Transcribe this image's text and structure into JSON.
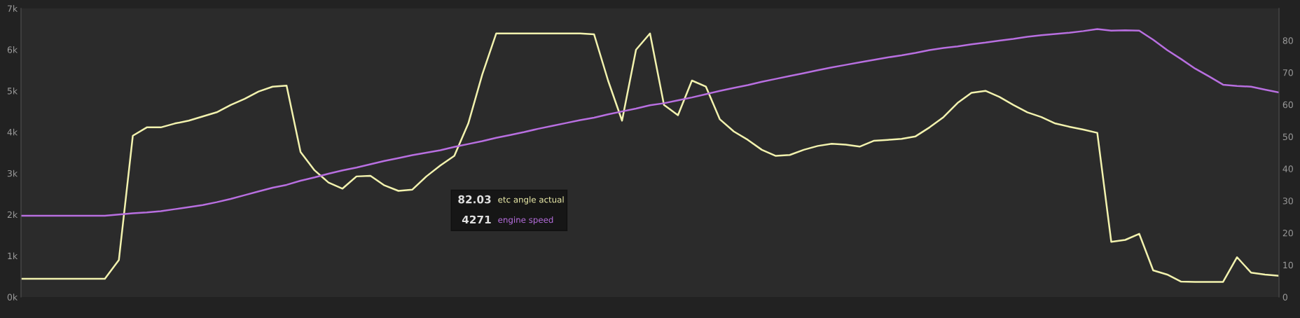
{
  "chart_data": {
    "type": "line",
    "categories": [
      null,
      null,
      null,
      null,
      null,
      null,
      null,
      null,
      null,
      null,
      null,
      null,
      null,
      null,
      null,
      null,
      null,
      null,
      null,
      null,
      null,
      null,
      null,
      null,
      null,
      null,
      null,
      null,
      null,
      null,
      null,
      null,
      null,
      null,
      null,
      null,
      null,
      null,
      null,
      null,
      null,
      null,
      null,
      null,
      null,
      null,
      null,
      null,
      null,
      null,
      null,
      null,
      null,
      null,
      null,
      null,
      null,
      null,
      null,
      null,
      null,
      null,
      null,
      null,
      null,
      null,
      null,
      null,
      null,
      null,
      null,
      null,
      null,
      null,
      null,
      null,
      null,
      null,
      null,
      null,
      null,
      null,
      null,
      null,
      null,
      null,
      null,
      null,
      null,
      null,
      null
    ],
    "series": [
      {
        "name": "etc angle actual",
        "color": "#f2f2ae",
        "axis": "y2",
        "values": [
          5.7,
          5.7,
          5.7,
          5.7,
          5.7,
          5.7,
          5.7,
          11.5,
          50.3,
          52.9,
          52.9,
          54.1,
          55.0,
          56.3,
          57.6,
          59.9,
          61.8,
          64.1,
          65.6,
          65.9,
          45.2,
          39.5,
          35.7,
          33.8,
          37.6,
          37.8,
          34.8,
          33.1,
          33.5,
          37.6,
          41.0,
          44.0,
          54.1,
          69.4,
          82.2,
          82.2,
          82.2,
          82.2,
          82.2,
          82.2,
          82.2,
          81.9,
          67.5,
          55.0,
          77.1,
          82.2,
          59.9,
          56.7,
          67.5,
          65.6,
          55.4,
          51.6,
          49.0,
          45.9,
          44.0,
          44.3,
          45.9,
          47.1,
          47.8,
          47.5,
          46.9,
          48.7,
          49.0,
          49.3,
          50.1,
          52.9,
          56.1,
          60.5,
          63.7,
          64.3,
          62.4,
          59.9,
          57.6,
          56.1,
          54.1,
          53.1,
          52.2,
          51.2,
          17.2,
          17.8,
          19.7,
          8.3,
          7.0,
          4.8,
          4.7,
          4.7,
          4.7,
          12.4,
          7.6,
          7.0,
          6.6
        ]
      },
      {
        "name": "engine speed",
        "color": "#b86fe0",
        "values": [
          1.97,
          1.97,
          1.97,
          1.97,
          1.97,
          1.97,
          1.97,
          2.0,
          2.03,
          2.05,
          2.08,
          2.13,
          2.18,
          2.23,
          2.3,
          2.38,
          2.47,
          2.56,
          2.65,
          2.72,
          2.82,
          2.9,
          2.99,
          3.07,
          3.14,
          3.22,
          3.3,
          3.37,
          3.44,
          3.5,
          3.56,
          3.64,
          3.71,
          3.78,
          3.86,
          3.93,
          4.0,
          4.08,
          4.15,
          4.22,
          4.29,
          4.35,
          4.43,
          4.5,
          4.57,
          4.65,
          4.7,
          4.77,
          4.84,
          4.92,
          5.0,
          5.07,
          5.14,
          5.22,
          5.29,
          5.36,
          5.43,
          5.5,
          5.57,
          5.63,
          5.69,
          5.75,
          5.81,
          5.86,
          5.92,
          5.99,
          6.04,
          6.08,
          6.13,
          6.17,
          6.22,
          6.26,
          6.31,
          6.35,
          6.38,
          6.41,
          6.45,
          6.5,
          6.46,
          6.47,
          6.46,
          6.24,
          5.99,
          5.77,
          5.54,
          5.35,
          5.15,
          5.12,
          5.1,
          5.03,
          4.96
        ]
      }
    ],
    "ylim": [
      0,
      7
    ],
    "yticks": [
      {
        "value": 0,
        "label": "0k"
      },
      {
        "value": 1,
        "label": "1k"
      },
      {
        "value": 2,
        "label": "2k"
      },
      {
        "value": 3,
        "label": "3k"
      },
      {
        "value": 4,
        "label": "4k"
      },
      {
        "value": 5,
        "label": "5k"
      },
      {
        "value": 6,
        "label": "6k"
      },
      {
        "value": 7,
        "label": "7k"
      }
    ],
    "y2lim": [
      0,
      90
    ],
    "y2ticks": [
      0,
      10,
      20,
      30,
      40,
      50,
      60,
      70,
      80
    ],
    "annotations": [
      "82.03",
      "4271"
    ],
    "legend": "center",
    "marker": "none",
    "line_style": "solid"
  }
}
